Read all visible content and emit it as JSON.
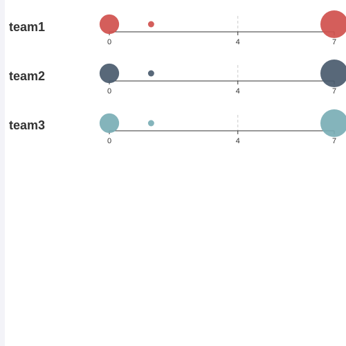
{
  "chart_data": {
    "type": "scatter",
    "title": "",
    "xlabel": "",
    "ylabel": "",
    "xlim": [
      0,
      7
    ],
    "xticks": [
      "0",
      "4",
      "7"
    ],
    "series": [
      {
        "name": "team1",
        "color": "#d0504d",
        "points": [
          {
            "x": 0,
            "size": 3
          },
          {
            "x": 1.3,
            "size": 0.3
          },
          {
            "x": 7,
            "size": 6
          }
        ]
      },
      {
        "name": "team2",
        "color": "#4a5b6e",
        "points": [
          {
            "x": 0,
            "size": 3
          },
          {
            "x": 1.3,
            "size": 0.3
          },
          {
            "x": 7,
            "size": 6
          }
        ]
      },
      {
        "name": "team3",
        "color": "#7aaeb5",
        "points": [
          {
            "x": 0,
            "size": 3
          },
          {
            "x": 1.3,
            "size": 0.3
          },
          {
            "x": 7,
            "size": 6
          }
        ]
      }
    ]
  }
}
